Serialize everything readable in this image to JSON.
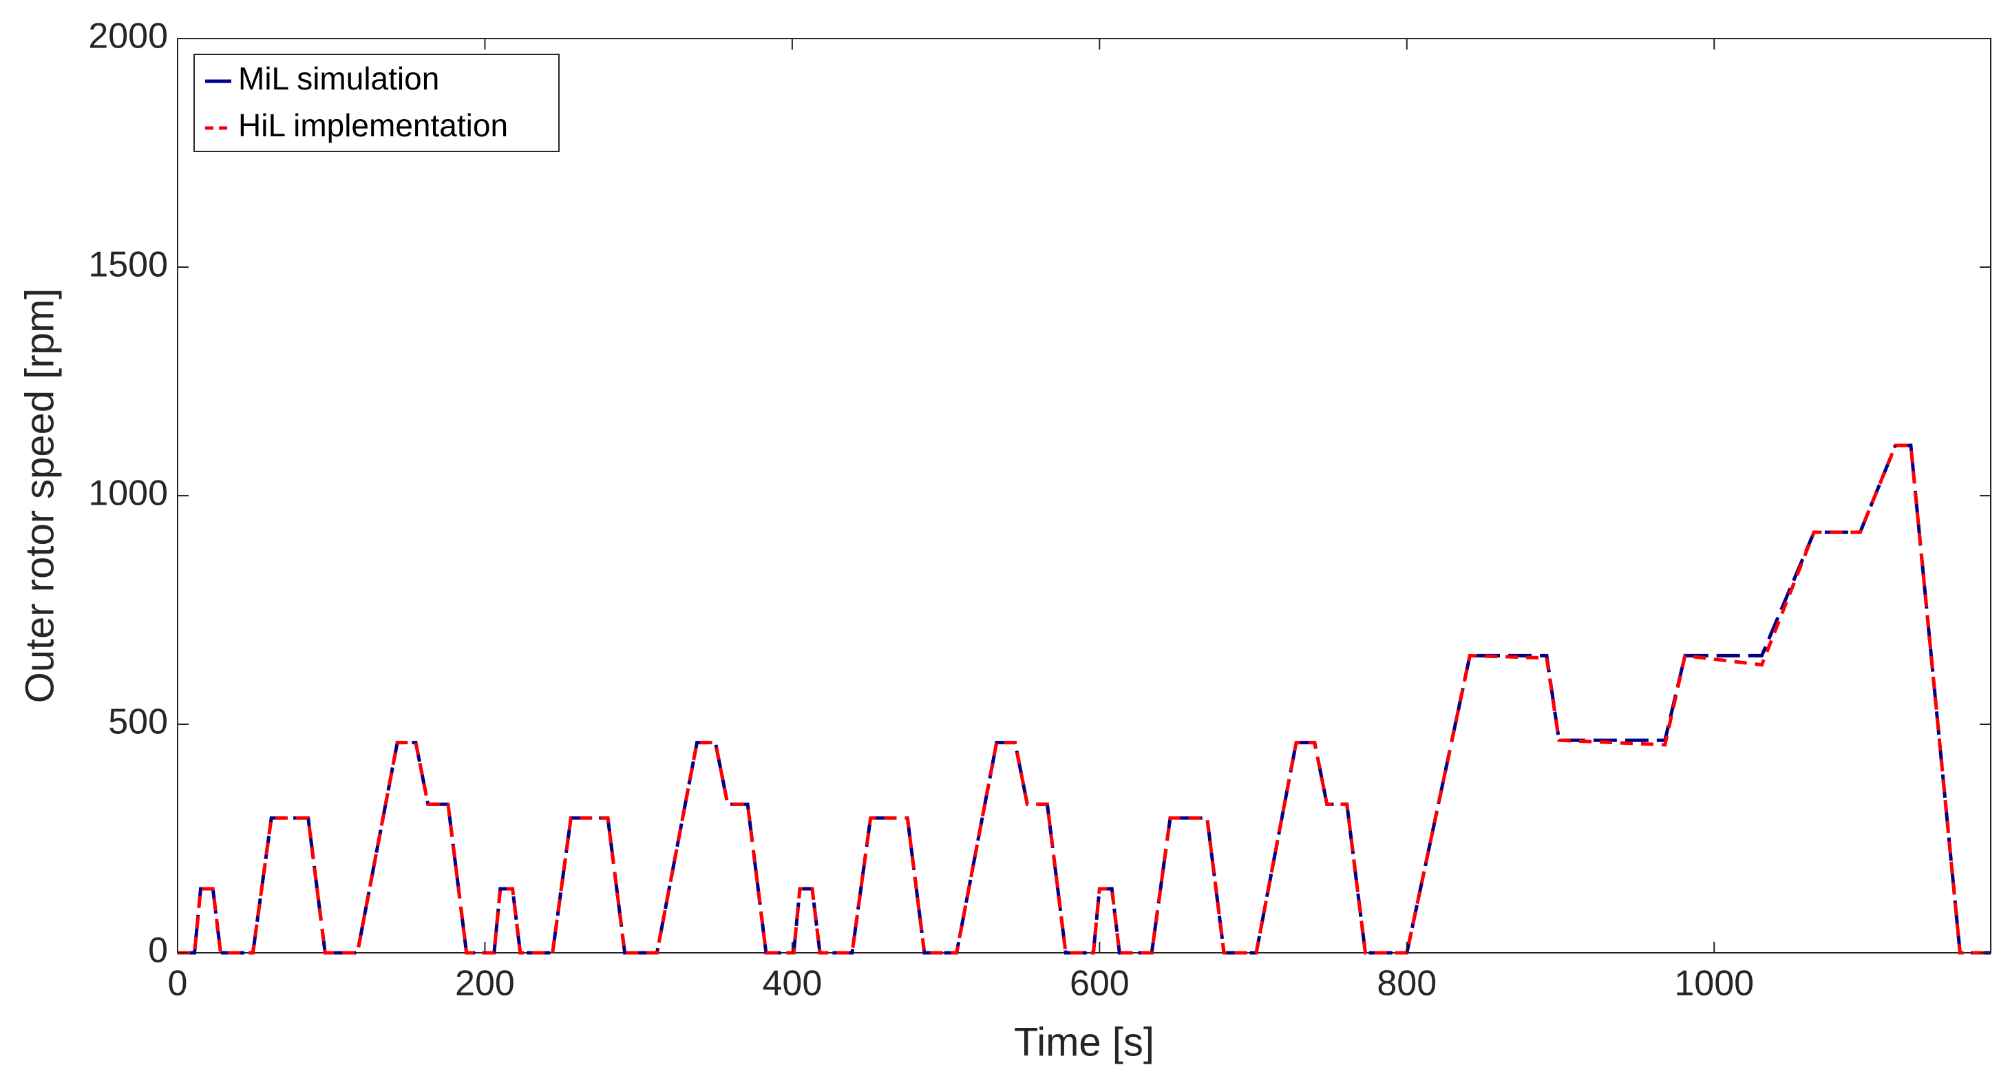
{
  "chart_data": {
    "type": "line",
    "xlabel": "Time [s]",
    "ylabel": "Outer rotor speed [rpm]",
    "xlim": [
      0,
      1180
    ],
    "ylim": [
      0,
      2000
    ],
    "xticks": [
      0,
      200,
      400,
      600,
      800,
      1000
    ],
    "yticks": [
      0,
      500,
      1000,
      1500,
      2000
    ],
    "legend": "upper left",
    "x": [
      0,
      11,
      15,
      23,
      28,
      49,
      61,
      85,
      96,
      117,
      143,
      155,
      163,
      176,
      188,
      206,
      210,
      218,
      223,
      244,
      256,
      280,
      291,
      312,
      338,
      350,
      358,
      371,
      383,
      401,
      405,
      413,
      418,
      439,
      451,
      475,
      486,
      507,
      533,
      545,
      553,
      566,
      578,
      596,
      600,
      608,
      613,
      634,
      646,
      670,
      681,
      702,
      728,
      740,
      748,
      761,
      773,
      800,
      841,
      891,
      899,
      968,
      981,
      1031,
      1065,
      1095,
      1118,
      1128,
      1160,
      1180
    ],
    "series": [
      {
        "name": "MiL simulation",
        "color": "#00008b",
        "values": [
          0,
          0,
          140,
          140,
          0,
          0,
          295,
          295,
          0,
          0,
          460,
          460,
          325,
          325,
          0,
          0,
          140,
          140,
          0,
          0,
          295,
          295,
          0,
          0,
          460,
          460,
          325,
          325,
          0,
          0,
          140,
          140,
          0,
          0,
          295,
          295,
          0,
          0,
          460,
          460,
          325,
          325,
          0,
          0,
          140,
          140,
          0,
          0,
          295,
          295,
          0,
          0,
          460,
          460,
          325,
          325,
          0,
          0,
          650,
          650,
          465,
          465,
          650,
          650,
          920,
          920,
          1110,
          1110,
          0,
          0
        ]
      },
      {
        "name": "HiL implementation",
        "color": "#ff0000",
        "values": [
          0,
          0,
          140,
          140,
          0,
          0,
          295,
          295,
          0,
          0,
          460,
          460,
          325,
          325,
          0,
          0,
          140,
          140,
          0,
          0,
          295,
          295,
          0,
          0,
          460,
          460,
          325,
          325,
          0,
          0,
          140,
          140,
          0,
          0,
          295,
          295,
          0,
          0,
          460,
          460,
          325,
          325,
          0,
          0,
          140,
          140,
          0,
          0,
          295,
          295,
          0,
          0,
          460,
          460,
          325,
          325,
          0,
          0,
          650,
          645,
          465,
          455,
          650,
          630,
          920,
          920,
          1110,
          1110,
          0,
          0
        ]
      }
    ]
  }
}
